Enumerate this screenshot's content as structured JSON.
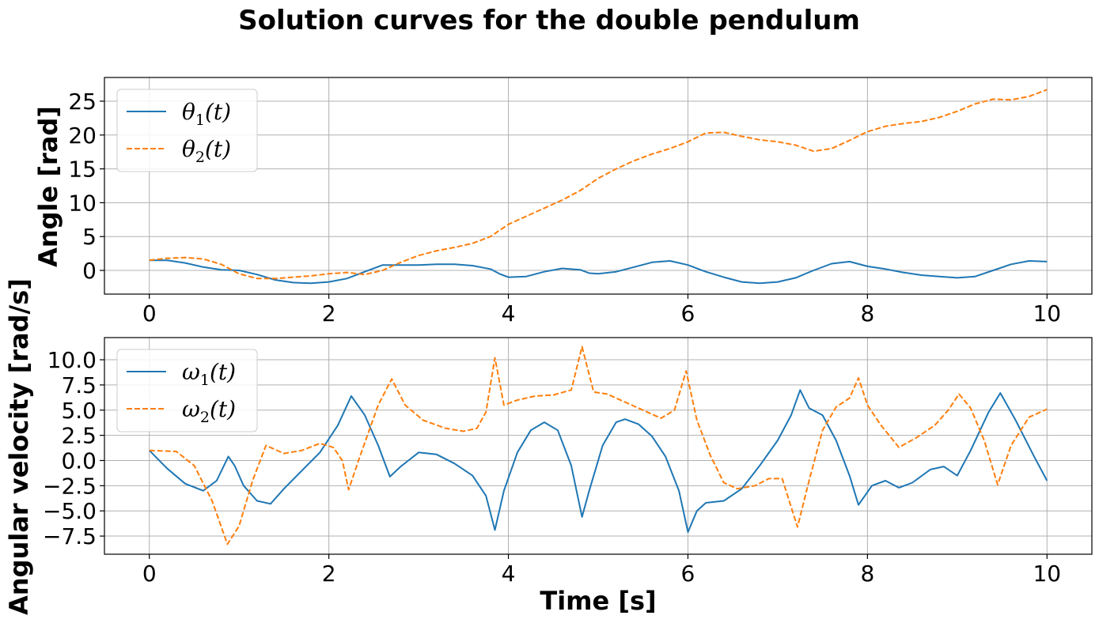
{
  "figure": {
    "title": "Solution curves for the double pendulum"
  },
  "colors": {
    "series1": "#1f77b4",
    "series2": "#ff7f0e",
    "grid": "#b0b0b0",
    "axes": "#000000"
  },
  "chart_data": [
    {
      "type": "line",
      "ylabel": "Angle [rad]",
      "xlabel": "",
      "xlim": [
        -0.5,
        10.5
      ],
      "ylim": [
        -3.5,
        28.5
      ],
      "xticks": [
        0,
        2,
        4,
        6,
        8,
        10
      ],
      "xtick_labels": [
        "0",
        "2",
        "4",
        "6",
        "8",
        "10"
      ],
      "yticks": [
        0,
        5,
        10,
        15,
        20,
        25
      ],
      "ytick_labels": [
        "0",
        "5",
        "10",
        "15",
        "20",
        "25"
      ],
      "grid": true,
      "legend_position": "top-left",
      "series": [
        {
          "name": "θ1(t)",
          "name_base": "θ",
          "name_sub": "1",
          "name_arg": "(t)",
          "color": "#1f77b4",
          "style": "solid",
          "points": [
            [
              0,
              1.5
            ],
            [
              0.2,
              1.5
            ],
            [
              0.4,
              1.1
            ],
            [
              0.6,
              0.5
            ],
            [
              0.8,
              0.1
            ],
            [
              1.0,
              0.0
            ],
            [
              1.2,
              -0.6
            ],
            [
              1.4,
              -1.4
            ],
            [
              1.6,
              -1.8
            ],
            [
              1.8,
              -1.9
            ],
            [
              2.0,
              -1.7
            ],
            [
              2.2,
              -1.2
            ],
            [
              2.4,
              -0.2
            ],
            [
              2.6,
              0.8
            ],
            [
              2.8,
              0.8
            ],
            [
              3.0,
              0.8
            ],
            [
              3.2,
              0.9
            ],
            [
              3.4,
              0.9
            ],
            [
              3.6,
              0.7
            ],
            [
              3.8,
              0.2
            ],
            [
              3.9,
              -0.5
            ],
            [
              4.0,
              -1.0
            ],
            [
              4.2,
              -0.9
            ],
            [
              4.4,
              -0.2
            ],
            [
              4.6,
              0.3
            ],
            [
              4.8,
              0.1
            ],
            [
              4.9,
              -0.4
            ],
            [
              5.0,
              -0.5
            ],
            [
              5.2,
              -0.2
            ],
            [
              5.4,
              0.5
            ],
            [
              5.6,
              1.2
            ],
            [
              5.8,
              1.4
            ],
            [
              6.0,
              0.8
            ],
            [
              6.2,
              -0.2
            ],
            [
              6.4,
              -1.0
            ],
            [
              6.6,
              -1.7
            ],
            [
              6.8,
              -1.9
            ],
            [
              7.0,
              -1.7
            ],
            [
              7.2,
              -1.1
            ],
            [
              7.4,
              0.0
            ],
            [
              7.6,
              1.0
            ],
            [
              7.8,
              1.3
            ],
            [
              8.0,
              0.6
            ],
            [
              8.2,
              0.2
            ],
            [
              8.4,
              -0.3
            ],
            [
              8.6,
              -0.7
            ],
            [
              8.8,
              -0.9
            ],
            [
              9.0,
              -1.1
            ],
            [
              9.2,
              -0.9
            ],
            [
              9.4,
              0.0
            ],
            [
              9.6,
              0.9
            ],
            [
              9.8,
              1.4
            ],
            [
              10.0,
              1.3
            ]
          ]
        },
        {
          "name": "θ2(t)",
          "name_base": "θ",
          "name_sub": "2",
          "name_arg": "(t)",
          "color": "#ff7f0e",
          "style": "dashed",
          "points": [
            [
              0,
              1.5
            ],
            [
              0.2,
              1.8
            ],
            [
              0.4,
              1.9
            ],
            [
              0.6,
              1.7
            ],
            [
              0.8,
              0.9
            ],
            [
              1.0,
              -0.5
            ],
            [
              1.2,
              -1.2
            ],
            [
              1.4,
              -1.2
            ],
            [
              1.6,
              -1.0
            ],
            [
              1.8,
              -0.8
            ],
            [
              2.0,
              -0.5
            ],
            [
              2.2,
              -0.3
            ],
            [
              2.4,
              -0.6
            ],
            [
              2.6,
              0.0
            ],
            [
              2.8,
              1.2
            ],
            [
              3.0,
              2.2
            ],
            [
              3.2,
              2.9
            ],
            [
              3.4,
              3.4
            ],
            [
              3.6,
              4.0
            ],
            [
              3.8,
              5.0
            ],
            [
              4.0,
              6.8
            ],
            [
              4.2,
              8.0
            ],
            [
              4.4,
              9.2
            ],
            [
              4.6,
              10.4
            ],
            [
              4.8,
              11.8
            ],
            [
              5.0,
              13.6
            ],
            [
              5.2,
              15.0
            ],
            [
              5.4,
              16.2
            ],
            [
              5.6,
              17.2
            ],
            [
              5.8,
              18.0
            ],
            [
              6.0,
              19.0
            ],
            [
              6.2,
              20.3
            ],
            [
              6.4,
              20.4
            ],
            [
              6.6,
              19.8
            ],
            [
              6.8,
              19.3
            ],
            [
              7.0,
              19.0
            ],
            [
              7.2,
              18.5
            ],
            [
              7.4,
              17.6
            ],
            [
              7.6,
              18.0
            ],
            [
              7.8,
              19.2
            ],
            [
              8.0,
              20.5
            ],
            [
              8.2,
              21.3
            ],
            [
              8.4,
              21.7
            ],
            [
              8.6,
              22.0
            ],
            [
              8.8,
              22.6
            ],
            [
              9.0,
              23.5
            ],
            [
              9.2,
              24.6
            ],
            [
              9.4,
              25.3
            ],
            [
              9.6,
              25.2
            ],
            [
              9.8,
              25.7
            ],
            [
              10.0,
              26.7
            ]
          ]
        }
      ]
    },
    {
      "type": "line",
      "ylabel": "Angular velocity [rad/s]",
      "xlabel": "Time [s]",
      "xlim": [
        -0.5,
        10.5
      ],
      "ylim": [
        -9.3,
        12.2
      ],
      "xticks": [
        0,
        2,
        4,
        6,
        8,
        10
      ],
      "xtick_labels": [
        "0",
        "2",
        "4",
        "6",
        "8",
        "10"
      ],
      "yticks": [
        -7.5,
        -5.0,
        -2.5,
        0.0,
        2.5,
        5.0,
        7.5,
        10.0
      ],
      "ytick_labels": [
        "−7.5",
        "−5.0",
        "−2.5",
        "0.0",
        "2.5",
        "5.0",
        "7.5",
        "10.0"
      ],
      "grid": true,
      "legend_position": "top-left",
      "series": [
        {
          "name": "ω1(t)",
          "name_base": "ω",
          "name_sub": "1",
          "name_arg": "(t)",
          "color": "#1f77b4",
          "style": "solid",
          "points": [
            [
              0,
              1.0
            ],
            [
              0.2,
              -0.8
            ],
            [
              0.4,
              -2.3
            ],
            [
              0.6,
              -3.0
            ],
            [
              0.75,
              -2.0
            ],
            [
              0.88,
              0.4
            ],
            [
              0.95,
              -0.5
            ],
            [
              1.05,
              -2.5
            ],
            [
              1.2,
              -4.0
            ],
            [
              1.35,
              -4.3
            ],
            [
              1.5,
              -2.8
            ],
            [
              1.7,
              -1.0
            ],
            [
              1.9,
              0.8
            ],
            [
              2.1,
              3.5
            ],
            [
              2.25,
              6.4
            ],
            [
              2.4,
              4.5
            ],
            [
              2.55,
              1.5
            ],
            [
              2.68,
              -1.6
            ],
            [
              2.8,
              -0.6
            ],
            [
              3.0,
              0.8
            ],
            [
              3.2,
              0.6
            ],
            [
              3.4,
              -0.3
            ],
            [
              3.6,
              -1.5
            ],
            [
              3.75,
              -3.5
            ],
            [
              3.85,
              -6.9
            ],
            [
              3.95,
              -3.0
            ],
            [
              4.1,
              0.8
            ],
            [
              4.25,
              3.0
            ],
            [
              4.4,
              3.8
            ],
            [
              4.55,
              3.0
            ],
            [
              4.7,
              -0.5
            ],
            [
              4.82,
              -5.6
            ],
            [
              4.9,
              -3.0
            ],
            [
              5.05,
              1.5
            ],
            [
              5.2,
              3.8
            ],
            [
              5.3,
              4.1
            ],
            [
              5.45,
              3.6
            ],
            [
              5.6,
              2.4
            ],
            [
              5.75,
              0.4
            ],
            [
              5.9,
              -3.0
            ],
            [
              6.0,
              -7.1
            ],
            [
              6.1,
              -5.0
            ],
            [
              6.2,
              -4.2
            ],
            [
              6.4,
              -4.0
            ],
            [
              6.6,
              -2.8
            ],
            [
              6.8,
              -0.5
            ],
            [
              7.0,
              2.0
            ],
            [
              7.15,
              4.5
            ],
            [
              7.25,
              7.0
            ],
            [
              7.35,
              5.2
            ],
            [
              7.5,
              4.5
            ],
            [
              7.65,
              2.0
            ],
            [
              7.8,
              -1.5
            ],
            [
              7.9,
              -4.4
            ],
            [
              8.05,
              -2.5
            ],
            [
              8.2,
              -2.0
            ],
            [
              8.35,
              -2.7
            ],
            [
              8.5,
              -2.2
            ],
            [
              8.7,
              -0.9
            ],
            [
              8.85,
              -0.6
            ],
            [
              9.0,
              -1.5
            ],
            [
              9.15,
              1.0
            ],
            [
              9.35,
              4.8
            ],
            [
              9.48,
              6.7
            ],
            [
              9.65,
              4.0
            ],
            [
              9.85,
              0.5
            ],
            [
              10.0,
              -2.0
            ]
          ]
        },
        {
          "name": "ω2(t)",
          "name_base": "ω",
          "name_sub": "2",
          "name_arg": "(t)",
          "color": "#ff7f0e",
          "style": "dashed",
          "points": [
            [
              0,
              1.0
            ],
            [
              0.3,
              0.9
            ],
            [
              0.5,
              -0.5
            ],
            [
              0.7,
              -4.0
            ],
            [
              0.87,
              -8.3
            ],
            [
              1.0,
              -6.5
            ],
            [
              1.15,
              -2.0
            ],
            [
              1.3,
              1.5
            ],
            [
              1.5,
              0.7
            ],
            [
              1.7,
              1.0
            ],
            [
              1.9,
              1.7
            ],
            [
              2.05,
              1.3
            ],
            [
              2.15,
              0.0
            ],
            [
              2.22,
              -2.9
            ],
            [
              2.35,
              0.5
            ],
            [
              2.55,
              5.5
            ],
            [
              2.7,
              8.1
            ],
            [
              2.85,
              5.5
            ],
            [
              3.05,
              4.0
            ],
            [
              3.3,
              3.2
            ],
            [
              3.5,
              2.9
            ],
            [
              3.65,
              3.2
            ],
            [
              3.75,
              4.8
            ],
            [
              3.85,
              10.2
            ],
            [
              3.95,
              5.5
            ],
            [
              4.1,
              6.0
            ],
            [
              4.3,
              6.4
            ],
            [
              4.5,
              6.5
            ],
            [
              4.7,
              7.0
            ],
            [
              4.82,
              11.3
            ],
            [
              4.95,
              6.8
            ],
            [
              5.1,
              6.6
            ],
            [
              5.3,
              5.8
            ],
            [
              5.5,
              5.0
            ],
            [
              5.7,
              4.2
            ],
            [
              5.85,
              5.0
            ],
            [
              5.98,
              8.9
            ],
            [
              6.1,
              4.0
            ],
            [
              6.25,
              0.5
            ],
            [
              6.4,
              -2.2
            ],
            [
              6.55,
              -2.8
            ],
            [
              6.75,
              -2.5
            ],
            [
              6.9,
              -1.8
            ],
            [
              7.05,
              -1.8
            ],
            [
              7.22,
              -6.6
            ],
            [
              7.35,
              -2.0
            ],
            [
              7.5,
              3.0
            ],
            [
              7.65,
              5.3
            ],
            [
              7.8,
              6.2
            ],
            [
              7.9,
              8.2
            ],
            [
              8.0,
              5.5
            ],
            [
              8.15,
              3.5
            ],
            [
              8.35,
              1.3
            ],
            [
              8.55,
              2.3
            ],
            [
              8.75,
              3.5
            ],
            [
              8.9,
              5.0
            ],
            [
              9.02,
              6.6
            ],
            [
              9.15,
              5.2
            ],
            [
              9.3,
              2.0
            ],
            [
              9.45,
              -2.4
            ],
            [
              9.6,
              1.5
            ],
            [
              9.8,
              4.3
            ],
            [
              10.0,
              5.1
            ]
          ]
        }
      ]
    }
  ]
}
